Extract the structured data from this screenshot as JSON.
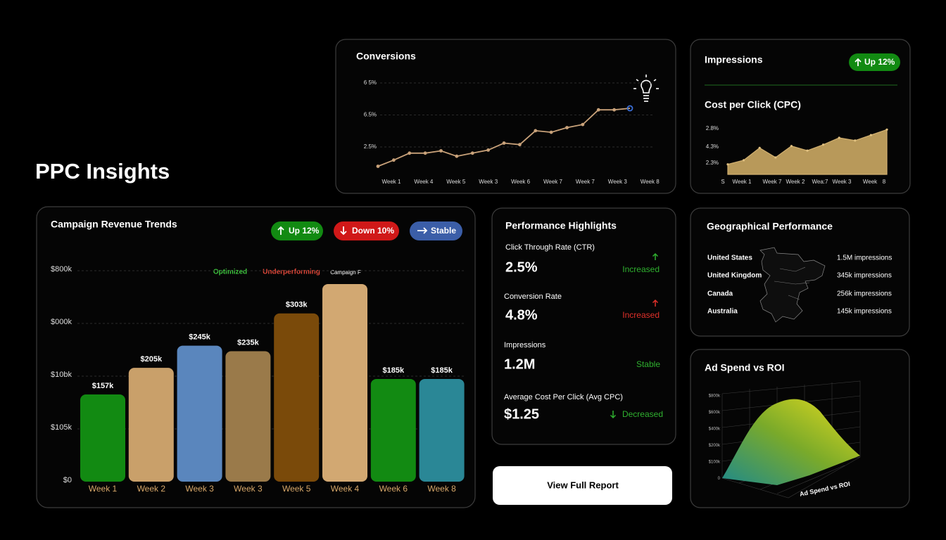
{
  "title": "PPC Insights",
  "conversions": {
    "type": "line",
    "title": "Conversions",
    "ytick_labels": [
      "6 5%",
      "6.5%",
      "2.5%"
    ],
    "ylim": [
      0,
      11
    ],
    "values": [
      0.0,
      0.8,
      1.7,
      1.7,
      2.0,
      1.3,
      1.7,
      2.1,
      3.0,
      2.8,
      4.6,
      4.4,
      5.0,
      5.4,
      7.3,
      7.3,
      7.5
    ],
    "xlabels": [
      "Week 1",
      "Week 4",
      "Week 5",
      "Week 3",
      "Week 6",
      "Week 7",
      "Week 7",
      "Week 3",
      "Week 8"
    ],
    "color": "#c9a27a"
  },
  "impressions": {
    "title": "Impressions",
    "badge": "Up 12%",
    "chart": {
      "type": "area",
      "title": "Cost per Click (CPC)",
      "ytick_labels": [
        "2.8%",
        "4.3%",
        "2.3%"
      ],
      "ylim": [
        0,
        10
      ],
      "values": [
        2.2,
        3.1,
        5.8,
        3.7,
        6.2,
        5.2,
        6.5,
        8.0,
        7.4,
        8.6,
        9.8
      ],
      "xlabels": [
        "S",
        "Week 1",
        "Week 7",
        "Week 2",
        "Wea:7",
        "Week 3",
        "Week",
        "8"
      ],
      "color": "#b8995a"
    }
  },
  "campaign": {
    "type": "bar",
    "title": "Campaign Revenue Trends",
    "badges": [
      "Up 12%",
      "Down 10%",
      "Stable"
    ],
    "annotations": [
      "Optimized",
      "Underperforming",
      "Campaign F"
    ],
    "ytick_labels": [
      "$800k",
      "$000k",
      "$10bk",
      "$105k",
      "$0"
    ],
    "ylim": [
      0,
      380
    ],
    "categories": [
      "Week 1",
      "Week 2",
      "Week 3",
      "Week 3",
      "Week 5",
      "Week 4",
      "Week 6",
      "Week 8"
    ],
    "values": [
      157,
      205,
      245,
      235,
      303,
      356,
      185,
      185
    ],
    "value_labels": [
      "$157k",
      "$205k",
      "$245k",
      "$235k",
      "$303k",
      null,
      "$185k",
      "$185k"
    ],
    "colors": [
      "#128a12",
      "#c9a06a",
      "#5a86bd",
      "#9a7a4a",
      "#7a4a0a",
      "#d2a872",
      "#128a12",
      "#2a8796"
    ]
  },
  "performance": {
    "title": "Performance Highlights",
    "metrics": [
      {
        "label": "Click Through Rate (CTR)",
        "value": "2.5%",
        "status": "Increased"
      },
      {
        "label": "Conversion Rate",
        "value": "4.8%",
        "status": "Increased"
      },
      {
        "label": "Impressions",
        "value": "1.2M",
        "status": "Stable"
      },
      {
        "label": "Average Cost Per Click (Avg CPC)",
        "value": "$1.25",
        "status": "Decreased"
      }
    ]
  },
  "button": "View Full Report",
  "geo": {
    "title": "Geographical Performance",
    "rows": [
      [
        "United States",
        "1.5M impressions"
      ],
      [
        "United Kingdom",
        "345k impressions"
      ],
      [
        "Canada",
        "256k impressions"
      ],
      [
        "Australia",
        "145k impressions"
      ]
    ]
  },
  "adspend": {
    "title": "Ad Spend vs ROI",
    "axis_label": "Ad Spend vs ROI",
    "ytick_labels": [
      "$800k",
      "$600k",
      "$400k",
      "$200k",
      "$100k",
      "0"
    ]
  }
}
